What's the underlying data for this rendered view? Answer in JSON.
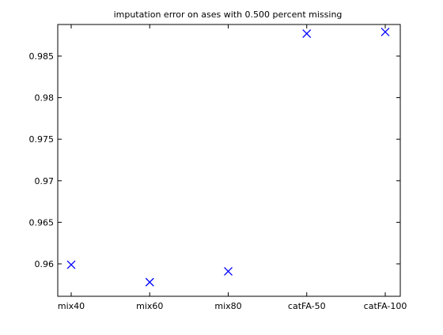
{
  "chart_data": {
    "type": "scatter",
    "title": "imputation error on ases with 0.500 percent missing",
    "xlabel": "",
    "ylabel": "",
    "categories": [
      "mix40",
      "mix60",
      "mix80",
      "catFA-50",
      "catFA-100"
    ],
    "series": [
      {
        "values": [
          0.9599,
          0.9578,
          0.9591,
          0.9877,
          0.9879
        ],
        "marker": "x",
        "color": "#0000ff"
      }
    ],
    "ylim": [
      0.9561,
      0.9888
    ],
    "yticks": [
      0.96,
      0.965,
      0.97,
      0.975,
      0.98,
      0.985
    ],
    "ytick_labels": [
      "0.96",
      "0.965",
      "0.97",
      "0.975",
      "0.98",
      "0.985"
    ],
    "grid": false,
    "legend": "none"
  }
}
